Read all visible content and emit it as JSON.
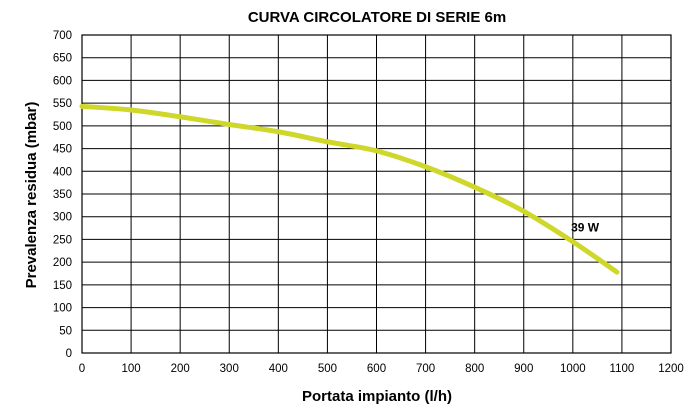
{
  "chart_data": {
    "type": "line",
    "title": "CURVA CIRCOLATORE DI SERIE 6m",
    "xlabel": "Portata impianto (l/h)",
    "ylabel": "Prevalenza residua (mbar)",
    "xlim": [
      0,
      1200
    ],
    "ylim": [
      0,
      700
    ],
    "x_ticks": [
      "0",
      "100",
      "200",
      "300",
      "400",
      "500",
      "600",
      "700",
      "800",
      "900",
      "1000",
      "1100",
      "1200"
    ],
    "y_ticks": [
      "0",
      "50",
      "100",
      "150",
      "200",
      "250",
      "300",
      "350",
      "400",
      "450",
      "500",
      "550",
      "600",
      "650",
      "700"
    ],
    "grid": true,
    "series": [
      {
        "name": "39 W",
        "color": "#cfd82a",
        "x": [
          0,
          100,
          200,
          300,
          400,
          500,
          600,
          700,
          800,
          900,
          1000,
          1090
        ],
        "y": [
          543,
          535,
          520,
          503,
          487,
          465,
          445,
          410,
          365,
          312,
          245,
          178
        ]
      }
    ]
  }
}
